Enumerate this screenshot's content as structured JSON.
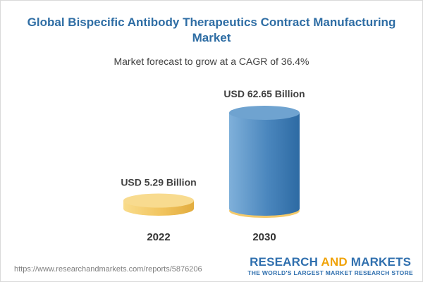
{
  "header": {
    "title": "Global Bispecific Antibody Therapeutics Contract Manufacturing Market",
    "subtitle": "Market forecast to grow at a CAGR of 36.4%"
  },
  "chart_data": {
    "type": "bar",
    "categories": [
      "2022",
      "2030"
    ],
    "values": [
      5.29,
      62.65
    ],
    "value_labels": [
      "USD 5.29 Billion",
      "USD 62.65 Billion"
    ],
    "unit": "USD Billion",
    "bar_colors": [
      "#f3c96a",
      "#3f80b6"
    ],
    "cap_colors": [
      "#f8db8f",
      "#6fa3d0"
    ],
    "base_color": "#f3c96a",
    "grid": false,
    "legend": "none"
  },
  "footer": {
    "source_url": "https://www.researchandmarkets.com/reports/5876206",
    "brand_part1": "RESEARCH ",
    "brand_and": "AND",
    "brand_part2": " MARKETS",
    "brand_tagline": "THE WORLD'S LARGEST MARKET RESEARCH STORE",
    "brand_color": "#2f6fae",
    "brand_accent": "#f0a30a"
  }
}
